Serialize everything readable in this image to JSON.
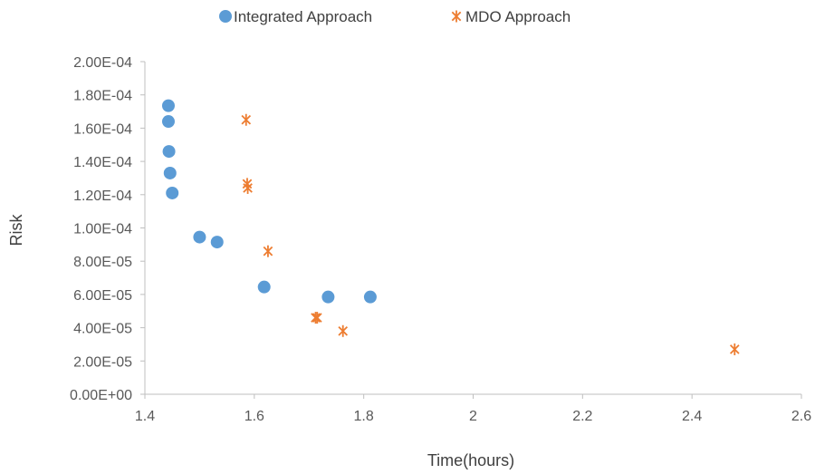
{
  "chart_data": {
    "type": "scatter",
    "xlabel": "Time(hours)",
    "ylabel": "Risk",
    "xlim": [
      1.4,
      2.6
    ],
    "ylim": [
      0,
      0.0002
    ],
    "x_ticks": [
      1.4,
      1.6,
      1.8,
      2,
      2.2,
      2.4,
      2.6
    ],
    "x_tick_labels": [
      "1.4",
      "1.6",
      "1.8",
      "2",
      "2.2",
      "2.4",
      "2.6"
    ],
    "y_ticks": [
      0,
      2e-05,
      4e-05,
      6e-05,
      8e-05,
      0.0001,
      0.00012,
      0.00014,
      0.00016,
      0.00018,
      0.0002
    ],
    "y_tick_labels": [
      "0.00E+00",
      "2.00E-05",
      "4.00E-05",
      "6.00E-05",
      "8.00E-05",
      "1.00E-04",
      "1.20E-04",
      "1.40E-04",
      "1.60E-04",
      "1.80E-04",
      "2.00E-04"
    ],
    "grid": false,
    "legend_position": "top-center",
    "series": [
      {
        "name": "Integrated Approach",
        "marker": "circle",
        "color": "#5B9BD5",
        "points": [
          [
            1.443,
            0.0001735
          ],
          [
            1.443,
            0.000164
          ],
          [
            1.444,
            0.000146
          ],
          [
            1.446,
            0.000133
          ],
          [
            1.45,
            0.000121
          ],
          [
            1.5,
            9.45e-05
          ],
          [
            1.532,
            9.15e-05
          ],
          [
            1.618,
            6.45e-05
          ],
          [
            1.735,
            5.85e-05
          ],
          [
            1.812,
            5.85e-05
          ]
        ]
      },
      {
        "name": "MDO Approach",
        "marker": "star",
        "color": "#ED7D31",
        "points": [
          [
            1.585,
            0.000165
          ],
          [
            1.587,
            0.0001265
          ],
          [
            1.588,
            0.000124
          ],
          [
            1.625,
            8.6e-05
          ],
          [
            1.712,
            4.6e-05
          ],
          [
            1.715,
            4.6e-05
          ],
          [
            1.762,
            3.8e-05
          ],
          [
            2.478,
            2.7e-05
          ]
        ]
      }
    ]
  }
}
